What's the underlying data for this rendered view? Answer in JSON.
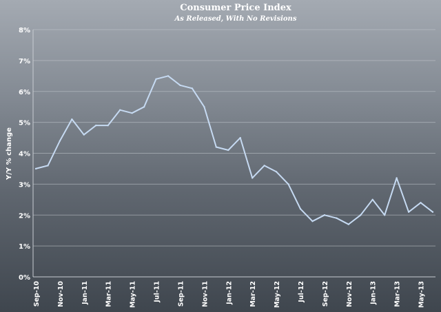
{
  "chart_data": {
    "type": "line",
    "title": "Consumer Price Index",
    "subtitle": "As Released, With No Revisions",
    "ylabel": "Y/Y % change",
    "xlabel": "",
    "ylim": [
      0,
      8
    ],
    "yticks": [
      "0%",
      "1%",
      "2%",
      "3%",
      "4%",
      "5%",
      "6%",
      "7%",
      "8%"
    ],
    "grid": true,
    "line_color": "#c6daf2",
    "x": [
      "Sep-10",
      "Oct-10",
      "Nov-10",
      "Dec-10",
      "Jan-11",
      "Feb-11",
      "Mar-11",
      "Apr-11",
      "May-11",
      "Jun-11",
      "Jul-11",
      "Aug-11",
      "Sep-11",
      "Oct-11",
      "Nov-11",
      "Dec-11",
      "Jan-12",
      "Feb-12",
      "Mar-12",
      "Apr-12",
      "May-12",
      "Jun-12",
      "Jul-12",
      "Aug-12",
      "Sep-12",
      "Oct-12",
      "Nov-12",
      "Dec-12",
      "Jan-13",
      "Feb-13",
      "Mar-13",
      "Apr-13",
      "May-13",
      "Jun-13"
    ],
    "xtick_labels": [
      "Sep-10",
      "Nov-10",
      "Jan-11",
      "Mar-11",
      "May-11",
      "Jul-11",
      "Sep-11",
      "Nov-11",
      "Jan-12",
      "Mar-12",
      "May-12",
      "Jul-12",
      "Sep-12",
      "Nov-12",
      "Jan-13",
      "Mar-13",
      "May-13"
    ],
    "series": [
      {
        "values": [
          3.5,
          3.6,
          4.4,
          5.1,
          4.6,
          4.9,
          4.9,
          5.4,
          5.3,
          5.5,
          6.4,
          6.5,
          6.2,
          6.1,
          5.5,
          4.2,
          4.1,
          4.5,
          3.2,
          3.6,
          3.4,
          3.0,
          2.2,
          1.8,
          2.0,
          1.9,
          1.7,
          2.0,
          2.5,
          2.0,
          3.2,
          2.1,
          2.4,
          2.1
        ]
      }
    ]
  }
}
